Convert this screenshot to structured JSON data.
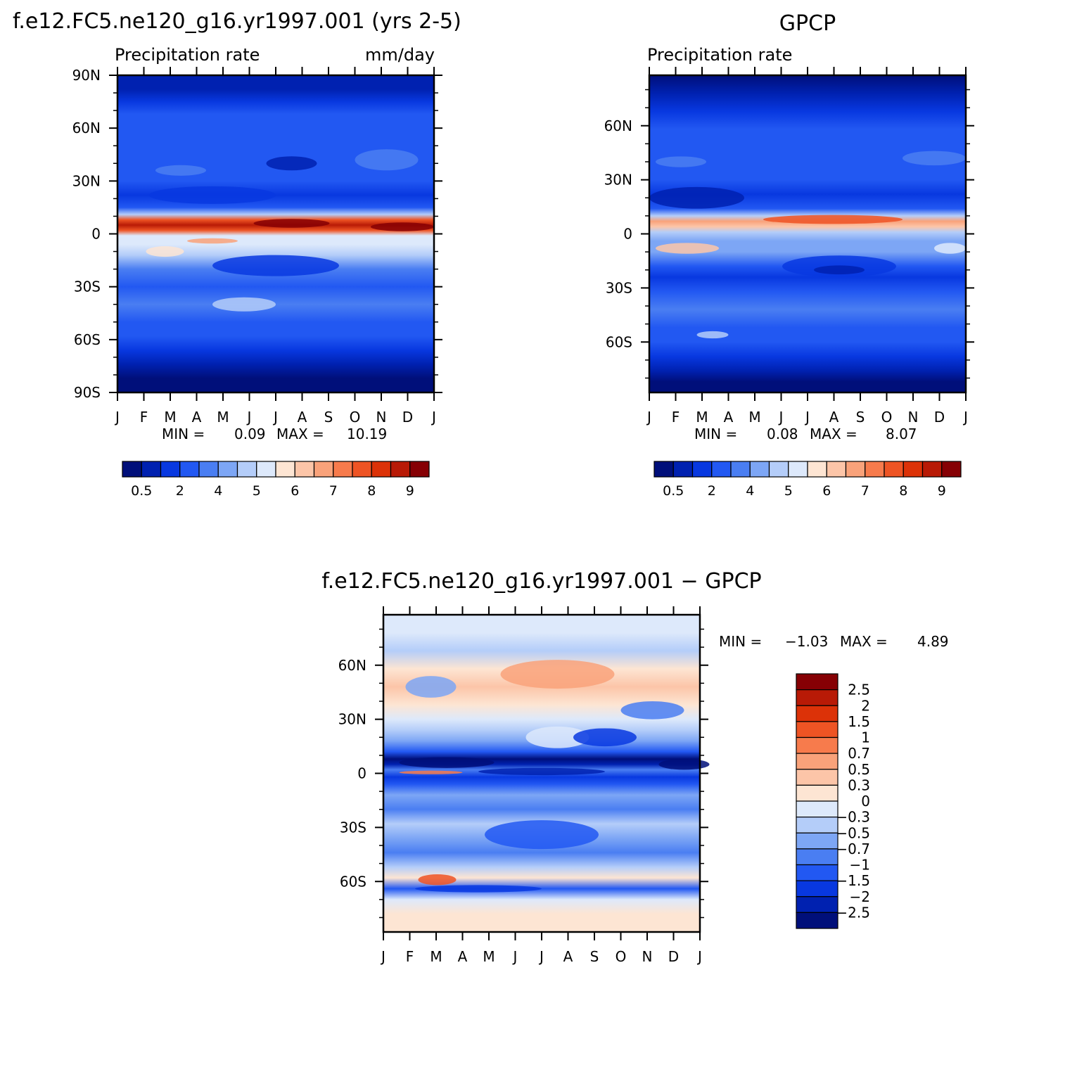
{
  "chart_data": [
    {
      "type": "heatmap",
      "title": "f.e12.FC5.ne120_g16.yr1997.001 (yrs 2-5)",
      "subtitle_left": "Precipitation rate",
      "subtitle_right": "mm/day",
      "x_tick_labels": [
        "J",
        "F",
        "M",
        "A",
        "M",
        "J",
        "J",
        "A",
        "S",
        "O",
        "N",
        "D",
        "J"
      ],
      "y_tick_labels": [
        "90N",
        "60N",
        "30N",
        "0",
        "30S",
        "60S",
        "90S"
      ],
      "y_tick_values": [
        90,
        60,
        30,
        0,
        -30,
        -60,
        -90
      ],
      "ylim": [
        -90,
        90
      ],
      "stats": {
        "min_label": "MIN =",
        "min": "0.09",
        "max_label": "MAX =",
        "max": "10.19"
      },
      "colorbar_labels": [
        "0.5",
        "2",
        "4",
        "5",
        "6",
        "7",
        "8",
        "9"
      ],
      "colorbar_colors": [
        "#000f7a",
        "#0021b0",
        "#0838e0",
        "#2258f2",
        "#4a7ef2",
        "#7da6f5",
        "#b4cdf9",
        "#dde9fb",
        "#fde5d3",
        "#fcc5a8",
        "#f9a27a",
        "#f77b4c",
        "#ee5424",
        "#dc3208",
        "#b81a06",
        "#860004"
      ],
      "bands": [
        {
          "lat": 90,
          "c": 1
        },
        {
          "lat": 82,
          "c": 1
        },
        {
          "lat": 75,
          "c": 2
        },
        {
          "lat": 68,
          "c": 3
        },
        {
          "lat": 60,
          "c": 3
        },
        {
          "lat": 52,
          "c": 3
        },
        {
          "lat": 45,
          "c": 3
        },
        {
          "lat": 38,
          "c": 3
        },
        {
          "lat": 30,
          "c": 3
        },
        {
          "lat": 22,
          "c": 2
        },
        {
          "lat": 15,
          "c": 3
        },
        {
          "lat": 11,
          "c": 6
        },
        {
          "lat": 8,
          "c": 12
        },
        {
          "lat": 5,
          "c": 14
        },
        {
          "lat": 2,
          "c": 12
        },
        {
          "lat": -1,
          "c": 7
        },
        {
          "lat": -6,
          "c": 7
        },
        {
          "lat": -12,
          "c": 6
        },
        {
          "lat": -20,
          "c": 4
        },
        {
          "lat": -30,
          "c": 3
        },
        {
          "lat": -40,
          "c": 4
        },
        {
          "lat": -50,
          "c": 3
        },
        {
          "lat": -58,
          "c": 3
        },
        {
          "lat": -66,
          "c": 2
        },
        {
          "lat": -74,
          "c": 1
        },
        {
          "lat": -82,
          "c": 0
        },
        {
          "lat": -90,
          "c": 0
        }
      ]
    },
    {
      "type": "heatmap",
      "title": "GPCP",
      "subtitle_left": "Precipitation rate",
      "x_tick_labels": [
        "J",
        "F",
        "M",
        "A",
        "M",
        "J",
        "J",
        "A",
        "S",
        "O",
        "N",
        "D",
        "J"
      ],
      "y_tick_labels": [
        "60N",
        "30N",
        "0",
        "30S",
        "60S"
      ],
      "y_tick_values": [
        60,
        30,
        0,
        -30,
        -60
      ],
      "ylim": [
        -88,
        88
      ],
      "stats": {
        "min_label": "MIN =",
        "min": "0.08",
        "max_label": "MAX =",
        "max": "8.07"
      },
      "colorbar_labels": [
        "0.5",
        "2",
        "4",
        "5",
        "6",
        "7",
        "8",
        "9"
      ],
      "colorbar_colors": [
        "#000f7a",
        "#0021b0",
        "#0838e0",
        "#2258f2",
        "#4a7ef2",
        "#7da6f5",
        "#b4cdf9",
        "#dde9fb",
        "#fde5d3",
        "#fcc5a8",
        "#f9a27a",
        "#f77b4c",
        "#ee5424",
        "#dc3208",
        "#b81a06",
        "#860004"
      ],
      "bands": [
        {
          "lat": 88,
          "c": 0
        },
        {
          "lat": 78,
          "c": 1
        },
        {
          "lat": 68,
          "c": 2
        },
        {
          "lat": 58,
          "c": 3
        },
        {
          "lat": 48,
          "c": 3
        },
        {
          "lat": 38,
          "c": 3
        },
        {
          "lat": 30,
          "c": 3
        },
        {
          "lat": 22,
          "c": 2
        },
        {
          "lat": 14,
          "c": 3
        },
        {
          "lat": 10,
          "c": 6
        },
        {
          "lat": 7,
          "c": 10
        },
        {
          "lat": 4,
          "c": 9
        },
        {
          "lat": 1,
          "c": 6
        },
        {
          "lat": -4,
          "c": 5
        },
        {
          "lat": -10,
          "c": 5
        },
        {
          "lat": -18,
          "c": 3
        },
        {
          "lat": -24,
          "c": 2
        },
        {
          "lat": -32,
          "c": 3
        },
        {
          "lat": -42,
          "c": 4
        },
        {
          "lat": -52,
          "c": 3
        },
        {
          "lat": -60,
          "c": 3
        },
        {
          "lat": -68,
          "c": 2
        },
        {
          "lat": -76,
          "c": 1
        },
        {
          "lat": -82,
          "c": 0
        },
        {
          "lat": -88,
          "c": 0
        }
      ]
    },
    {
      "type": "heatmap",
      "title": "f.e12.FC5.ne120_g16.yr1997.001 − GPCP",
      "x_tick_labels": [
        "J",
        "F",
        "M",
        "A",
        "M",
        "J",
        "J",
        "A",
        "S",
        "O",
        "N",
        "D",
        "J"
      ],
      "y_tick_labels": [
        "60N",
        "30N",
        "0",
        "30S",
        "60S"
      ],
      "y_tick_values": [
        60,
        30,
        0,
        -30,
        -60
      ],
      "ylim": [
        -88,
        88
      ],
      "stats": {
        "min_label": "MIN =",
        "min": "−1.03",
        "max_label": "MAX =",
        "max": "4.89"
      },
      "colorbar_labels": [
        "2.5",
        "2",
        "1.5",
        "1",
        "0.7",
        "0.5",
        "0.3",
        "0",
        "−0.3",
        "−0.5",
        "−0.7",
        "−1",
        "−1.5",
        "−2",
        "−2.5"
      ],
      "colorbar_colors": [
        "#860004",
        "#b81a06",
        "#dc3208",
        "#ee5424",
        "#f77b4c",
        "#f9a27a",
        "#fcc5a8",
        "#fde5d3",
        "#dde9fb",
        "#b4cdf9",
        "#7da6f5",
        "#4a7ef2",
        "#2258f2",
        "#0838e0",
        "#0021b0",
        "#000f7a"
      ],
      "bands": [
        {
          "lat": 88,
          "c": 8
        },
        {
          "lat": 78,
          "c": 8
        },
        {
          "lat": 68,
          "c": 9
        },
        {
          "lat": 58,
          "c": 7
        },
        {
          "lat": 48,
          "c": 6
        },
        {
          "lat": 38,
          "c": 7
        },
        {
          "lat": 30,
          "c": 8
        },
        {
          "lat": 24,
          "c": 9
        },
        {
          "lat": 18,
          "c": 10
        },
        {
          "lat": 12,
          "c": 12
        },
        {
          "lat": 8,
          "c": 15
        },
        {
          "lat": 5,
          "c": 14
        },
        {
          "lat": 2,
          "c": 11
        },
        {
          "lat": -2,
          "c": 13
        },
        {
          "lat": -6,
          "c": 12
        },
        {
          "lat": -12,
          "c": 10
        },
        {
          "lat": -20,
          "c": 11
        },
        {
          "lat": -28,
          "c": 9
        },
        {
          "lat": -36,
          "c": 10
        },
        {
          "lat": -44,
          "c": 11
        },
        {
          "lat": -52,
          "c": 9
        },
        {
          "lat": -58,
          "c": 7
        },
        {
          "lat": -64,
          "c": 12
        },
        {
          "lat": -70,
          "c": 8
        },
        {
          "lat": -78,
          "c": 7
        },
        {
          "lat": -88,
          "c": 7
        }
      ]
    }
  ]
}
